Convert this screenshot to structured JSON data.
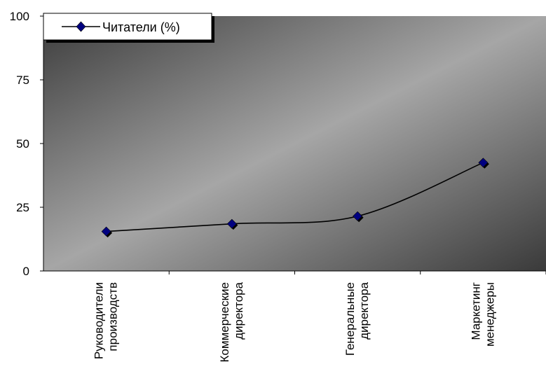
{
  "chart_data": {
    "type": "line",
    "categories": [
      [
        "Руководители",
        "производств"
      ],
      [
        "Коммерческие",
        "директора"
      ],
      [
        "Генеральные",
        "директора"
      ],
      [
        "Маркетинг",
        "менеджеры"
      ]
    ],
    "series": [
      {
        "name": "Читатели (%)",
        "values": [
          15.5,
          18.5,
          21.5,
          42.5
        ]
      }
    ],
    "ylim": [
      0,
      100
    ],
    "yticks": [
      "0",
      "25",
      "50",
      "75",
      "100"
    ],
    "grid": false,
    "legend": "top-left",
    "colors": {
      "line": "#000000",
      "marker": "#000080",
      "plot_light": "#a8a8a8",
      "plot_dark": "#3a3a3a"
    }
  }
}
